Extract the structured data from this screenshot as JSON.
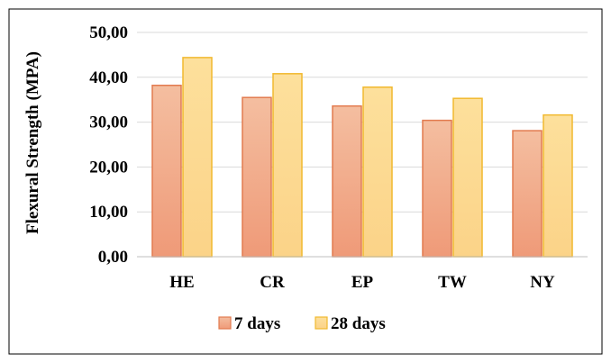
{
  "chart_data": {
    "type": "bar",
    "title": "",
    "xlabel": "",
    "ylabel": "Flexural Strength (MPA)",
    "categories": [
      "HE",
      "CR",
      "EP",
      "TW",
      "NY"
    ],
    "series": [
      {
        "name": "7 days",
        "values": [
          38.2,
          35.5,
          33.6,
          30.4,
          28.1
        ],
        "color_top": "#f4bea0",
        "color_bottom": "#ef9a78",
        "stroke": "#e27b4f"
      },
      {
        "name": "28 days",
        "values": [
          44.4,
          40.8,
          37.8,
          35.3,
          31.6
        ],
        "color_top": "#fde09c",
        "color_bottom": "#fbd388",
        "stroke": "#f1b92f"
      }
    ],
    "ylim": [
      0,
      50
    ],
    "yticks": [
      0,
      10,
      20,
      30,
      40,
      50
    ],
    "ytick_labels": [
      "0,00",
      "10,00",
      "20,00",
      "30,00",
      "40,00",
      "50,00"
    ],
    "grid": true,
    "legend_position": "bottom"
  }
}
